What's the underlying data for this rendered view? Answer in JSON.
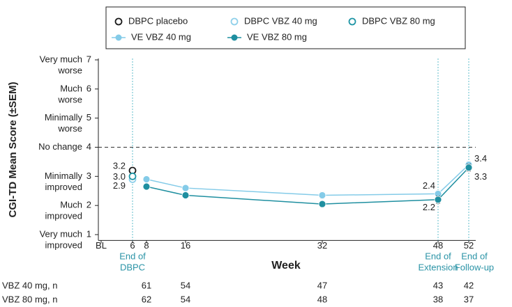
{
  "chart_data": {
    "type": "line",
    "y_label": "CGI-TD Mean Score (±SEM)",
    "x_label": "Week",
    "categories": [
      "BL",
      "6",
      "8",
      "16",
      "32",
      "48",
      "52"
    ],
    "ylim": [
      0.8,
      7
    ],
    "yticks": [
      1,
      2,
      3,
      4,
      5,
      6,
      7
    ],
    "ytick_texts": [
      [
        "Very much",
        "improved"
      ],
      [
        "Much",
        "improved"
      ],
      [
        "Minimally",
        "improved"
      ],
      [
        "No change"
      ],
      [
        "Minimally",
        "worse"
      ],
      [
        "Much",
        "worse"
      ],
      [
        "Very much",
        "worse"
      ]
    ],
    "reference_line": 4,
    "milestones": [
      {
        "x": "6",
        "label": [
          "End of",
          "DBPC"
        ]
      },
      {
        "x": "48",
        "label": [
          "End of",
          "Extension"
        ]
      },
      {
        "x": "52",
        "label": [
          "End of",
          "Follow-up"
        ]
      }
    ],
    "series": [
      {
        "name": "DBPC placebo",
        "color": "#1a1a1a",
        "marker": "open",
        "x": [
          "6"
        ],
        "values": [
          3.2
        ],
        "value_labels": [
          "3.2"
        ]
      },
      {
        "name": "DBPC VBZ 40 mg",
        "color": "#8fd0ea",
        "marker": "open",
        "x": [
          "6"
        ],
        "values": [
          2.9
        ],
        "value_labels": [
          "2.9"
        ]
      },
      {
        "name": "DBPC VBZ 80 mg",
        "color": "#1f95a5",
        "marker": "open",
        "x": [
          "6"
        ],
        "values": [
          3.0
        ],
        "value_labels": [
          "3.0"
        ]
      },
      {
        "name": "VE VBZ 40 mg",
        "color": "#84cbe8",
        "marker": "line",
        "x": [
          "8",
          "16",
          "32",
          "48",
          "52"
        ],
        "values": [
          2.9,
          2.6,
          2.35,
          2.4,
          3.4
        ],
        "errors": [
          0.06,
          0.08,
          0.1,
          0.1,
          0.1
        ],
        "value_labels": [
          null,
          null,
          null,
          "2.4",
          "3.4"
        ]
      },
      {
        "name": "VE VBZ 80 mg",
        "color": "#1f8fa0",
        "marker": "line",
        "x": [
          "8",
          "16",
          "32",
          "48",
          "52"
        ],
        "values": [
          2.65,
          2.35,
          2.05,
          2.2,
          3.3
        ],
        "errors": [
          0.06,
          0.08,
          0.1,
          0.12,
          0.12
        ],
        "value_labels": [
          null,
          null,
          null,
          "2.2",
          "3.3"
        ]
      }
    ],
    "n_table": [
      {
        "label": "VBZ 40 mg, n",
        "x": [
          "8",
          "16",
          "32",
          "48",
          "52"
        ],
        "values": [
          61,
          54,
          47,
          43,
          42
        ]
      },
      {
        "label": "VBZ 80 mg, n",
        "x": [
          "8",
          "16",
          "32",
          "48",
          "52"
        ],
        "values": [
          62,
          54,
          48,
          38,
          37
        ]
      }
    ],
    "legend": "top"
  }
}
